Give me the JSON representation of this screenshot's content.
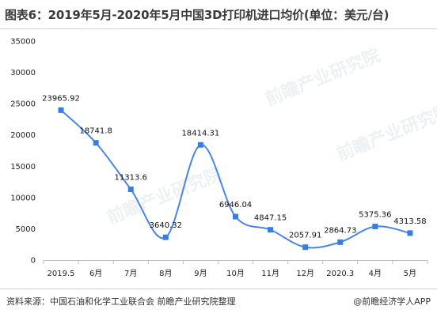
{
  "title": "图表6：2019年5月-2020年5月中国3D打印机进口均价(单位：美元/台)",
  "footer": {
    "source": "资料来源：中国石油和化学工业联合会 前瞻产业研究院整理",
    "brand": "@前瞻经济学人APP"
  },
  "watermarks": [
    "前瞻产业研究院",
    "前瞻产业研究院",
    "前瞻产业研究院"
  ],
  "colors": {
    "line": "#4a86e0",
    "marker": "#3b7ddd"
  },
  "chart_data": {
    "type": "line",
    "categories": [
      "2019.5",
      "6月",
      "7月",
      "8月",
      "9月",
      "10月",
      "11月",
      "12月",
      "2020.3",
      "4月",
      "5月"
    ],
    "values": [
      23965.92,
      18741.8,
      11313.6,
      3640.32,
      18414.31,
      6946.04,
      4847.15,
      2057.91,
      2864.73,
      5375.36,
      4313.58
    ],
    "labels": [
      "23965.92",
      "18741.8",
      "11313.6",
      "3640.32",
      "18414.31",
      "6946.04",
      "4847.15",
      "2057.91",
      "2864.73",
      "5375.36",
      "4313.58"
    ],
    "yticks": [
      "0",
      "5000",
      "10000",
      "15000",
      "20000",
      "25000",
      "30000",
      "35000"
    ],
    "ylim": [
      0,
      35000
    ],
    "grid": false,
    "smooth": true
  }
}
